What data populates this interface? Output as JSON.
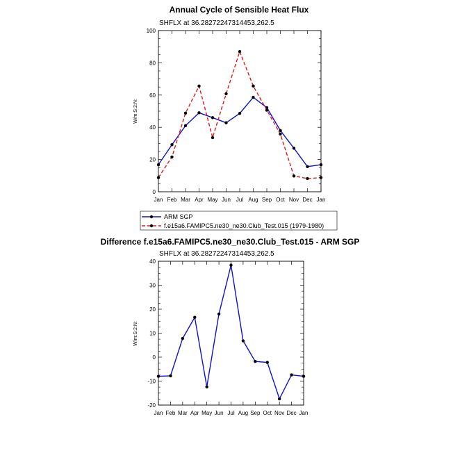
{
  "chart_data": [
    {
      "type": "line",
      "title": "Annual Cycle of Sensible Heat Flux",
      "subtitle": "SHFLX at 36.28272247314453,262.5",
      "ylabel": "W/m:S:2:N:",
      "xlabel": "",
      "categories": [
        "Jan",
        "Feb",
        "Mar",
        "Apr",
        "May",
        "Jun",
        "Jul",
        "Aug",
        "Sep",
        "Oct",
        "Nov",
        "Dec",
        "Jan"
      ],
      "ylim": [
        0,
        100
      ],
      "yticks": [
        0,
        20,
        40,
        60,
        80,
        100
      ],
      "series": [
        {
          "name": "ARM SGP",
          "color": "#1010d0",
          "dashed": false,
          "values": [
            16.8,
            29.2,
            41.0,
            49.0,
            46.0,
            42.8,
            48.6,
            58.6,
            52.2,
            38.0,
            27.0,
            15.6,
            16.8
          ]
        },
        {
          "name": "f.e15a6.FAMIPC5.ne30_ne30.Club_Test.015 (1979-1980)",
          "color": "#e01818",
          "dashed": true,
          "values": [
            8.8,
            21.6,
            48.8,
            65.6,
            33.6,
            60.8,
            87.0,
            65.6,
            50.6,
            35.8,
            9.8,
            8.2,
            8.8
          ]
        }
      ]
    },
    {
      "type": "line",
      "title": "Difference f.e15a6.FAMIPC5.ne30_ne30.Club_Test.015 - ARM SGP",
      "subtitle": "SHFLX at 36.28272247314453,262.5",
      "ylabel": "W/m:S:2:N:",
      "xlabel": "",
      "categories": [
        "Jan",
        "Feb",
        "Mar",
        "Apr",
        "May",
        "Jun",
        "Jul",
        "Aug",
        "Sep",
        "Oct",
        "Nov",
        "Dec",
        "Jan"
      ],
      "ylim": [
        -20,
        40
      ],
      "yticks": [
        -20,
        -10,
        0,
        10,
        20,
        30,
        40
      ],
      "series": [
        {
          "name": "Difference",
          "color": "#1010d0",
          "dashed": false,
          "values": [
            -8.0,
            -7.8,
            7.8,
            16.6,
            -12.4,
            18.0,
            38.4,
            6.8,
            -1.8,
            -2.2,
            -17.4,
            -7.4,
            -8.0
          ]
        }
      ]
    }
  ]
}
